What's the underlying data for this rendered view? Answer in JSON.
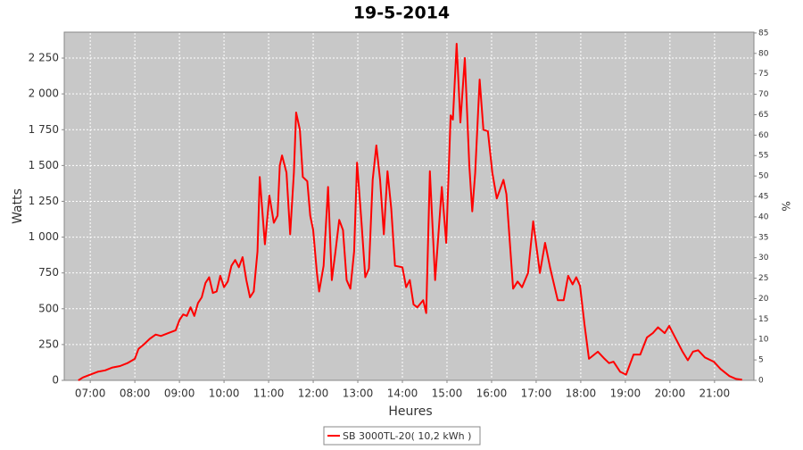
{
  "chart_data": {
    "type": "line",
    "title": "19-5-2014",
    "xlabel": "Heures",
    "ylabel": "Watts",
    "y2label": "%",
    "x": [
      "06:44",
      "06:50",
      "07:00",
      "07:10",
      "07:20",
      "07:30",
      "07:40",
      "07:50",
      "08:00",
      "08:05",
      "08:12",
      "08:20",
      "08:28",
      "08:35",
      "08:45",
      "08:55",
      "09:00",
      "09:05",
      "09:10",
      "09:15",
      "09:20",
      "09:25",
      "09:30",
      "09:35",
      "09:40",
      "09:45",
      "09:50",
      "09:55",
      "10:00",
      "10:05",
      "10:10",
      "10:15",
      "10:20",
      "10:25",
      "10:30",
      "10:35",
      "10:40",
      "10:45",
      "10:48",
      "10:55",
      "11:01",
      "11:07",
      "11:12",
      "11:15",
      "11:18",
      "11:24",
      "11:29",
      "11:34",
      "11:37",
      "11:42",
      "11:46",
      "11:52",
      "11:56",
      "12:00",
      "12:05",
      "12:08",
      "12:14",
      "12:20",
      "12:25",
      "12:30",
      "12:35",
      "12:40",
      "12:45",
      "12:50",
      "12:55",
      "12:59",
      "13:05",
      "13:10",
      "13:15",
      "13:20",
      "13:25",
      "13:30",
      "13:35",
      "13:40",
      "13:45",
      "13:50",
      "14:00",
      "14:05",
      "14:10",
      "14:15",
      "14:20",
      "14:28",
      "14:32",
      "14:37",
      "14:44",
      "14:53",
      "14:59",
      "15:05",
      "15:08",
      "15:13",
      "15:18",
      "15:24",
      "15:30",
      "15:34",
      "15:38",
      "15:44",
      "15:49",
      "15:55",
      "16:01",
      "16:07",
      "16:16",
      "16:20",
      "16:29",
      "16:35",
      "16:41",
      "16:49",
      "16:56",
      "17:05",
      "17:12",
      "17:19",
      "17:29",
      "17:37",
      "17:43",
      "17:49",
      "17:54",
      "17:59",
      "18:05",
      "18:11",
      "18:23",
      "18:32",
      "18:38",
      "18:44",
      "18:53",
      "19:01",
      "19:11",
      "19:20",
      "19:29",
      "19:37",
      "19:44",
      "19:53",
      "19:59",
      "20:07",
      "20:17",
      "20:24",
      "20:31",
      "20:38",
      "20:47",
      "20:59",
      "21:08",
      "21:20",
      "21:29",
      "21:37"
    ],
    "series": [
      {
        "name": "SB 3000TL-20( 10,2 kWh )",
        "color": "#ff0000",
        "values": [
          0,
          20,
          40,
          60,
          70,
          90,
          100,
          120,
          150,
          220,
          250,
          290,
          320,
          310,
          330,
          350,
          420,
          460,
          450,
          510,
          450,
          540,
          580,
          680,
          720,
          610,
          620,
          730,
          650,
          690,
          800,
          840,
          790,
          860,
          700,
          580,
          620,
          900,
          1420,
          950,
          1290,
          1100,
          1150,
          1500,
          1570,
          1450,
          1020,
          1450,
          1870,
          1750,
          1420,
          1390,
          1150,
          1050,
          750,
          620,
          800,
          1350,
          700,
          900,
          1120,
          1050,
          700,
          640,
          900,
          1520,
          1100,
          720,
          780,
          1400,
          1640,
          1400,
          1020,
          1460,
          1200,
          800,
          790,
          650,
          700,
          530,
          510,
          560,
          470,
          1460,
          700,
          1350,
          960,
          1850,
          1820,
          2350,
          1800,
          2250,
          1500,
          1180,
          1450,
          2100,
          1750,
          1740,
          1450,
          1270,
          1400,
          1300,
          640,
          690,
          650,
          750,
          1110,
          750,
          960,
          780,
          560,
          560,
          730,
          670,
          720,
          660,
          390,
          150,
          200,
          150,
          120,
          130,
          60,
          40,
          180,
          180,
          300,
          330,
          370,
          330,
          380,
          300,
          200,
          140,
          200,
          210,
          160,
          130,
          80,
          30,
          10,
          5
        ]
      }
    ],
    "xlim": [
      "06:25",
      "21:53"
    ],
    "xticks": [
      "07:00",
      "08:00",
      "09:00",
      "10:00",
      "11:00",
      "12:00",
      "13:00",
      "14:00",
      "15:00",
      "16:00",
      "17:00",
      "18:00",
      "19:00",
      "20:00",
      "21:00"
    ],
    "ylim": [
      0,
      2431
    ],
    "yticks": [
      0,
      250,
      500,
      750,
      {
        "value": 1000,
        "label": "1 000"
      },
      {
        "value": 1250,
        "label": "1 250"
      },
      {
        "value": 1500,
        "label": "1 500"
      },
      {
        "value": 1750,
        "label": "1 750"
      },
      {
        "value": 2000,
        "label": "2 000"
      },
      {
        "value": 2250,
        "label": "2 250"
      }
    ],
    "y2lim": [
      0,
      85.2
    ],
    "y2ticks": [
      0,
      5,
      10,
      15,
      20,
      25,
      30,
      35,
      40,
      45,
      50,
      55,
      60,
      65,
      70,
      75,
      80,
      85
    ],
    "grid": true,
    "legend": "bottom"
  }
}
